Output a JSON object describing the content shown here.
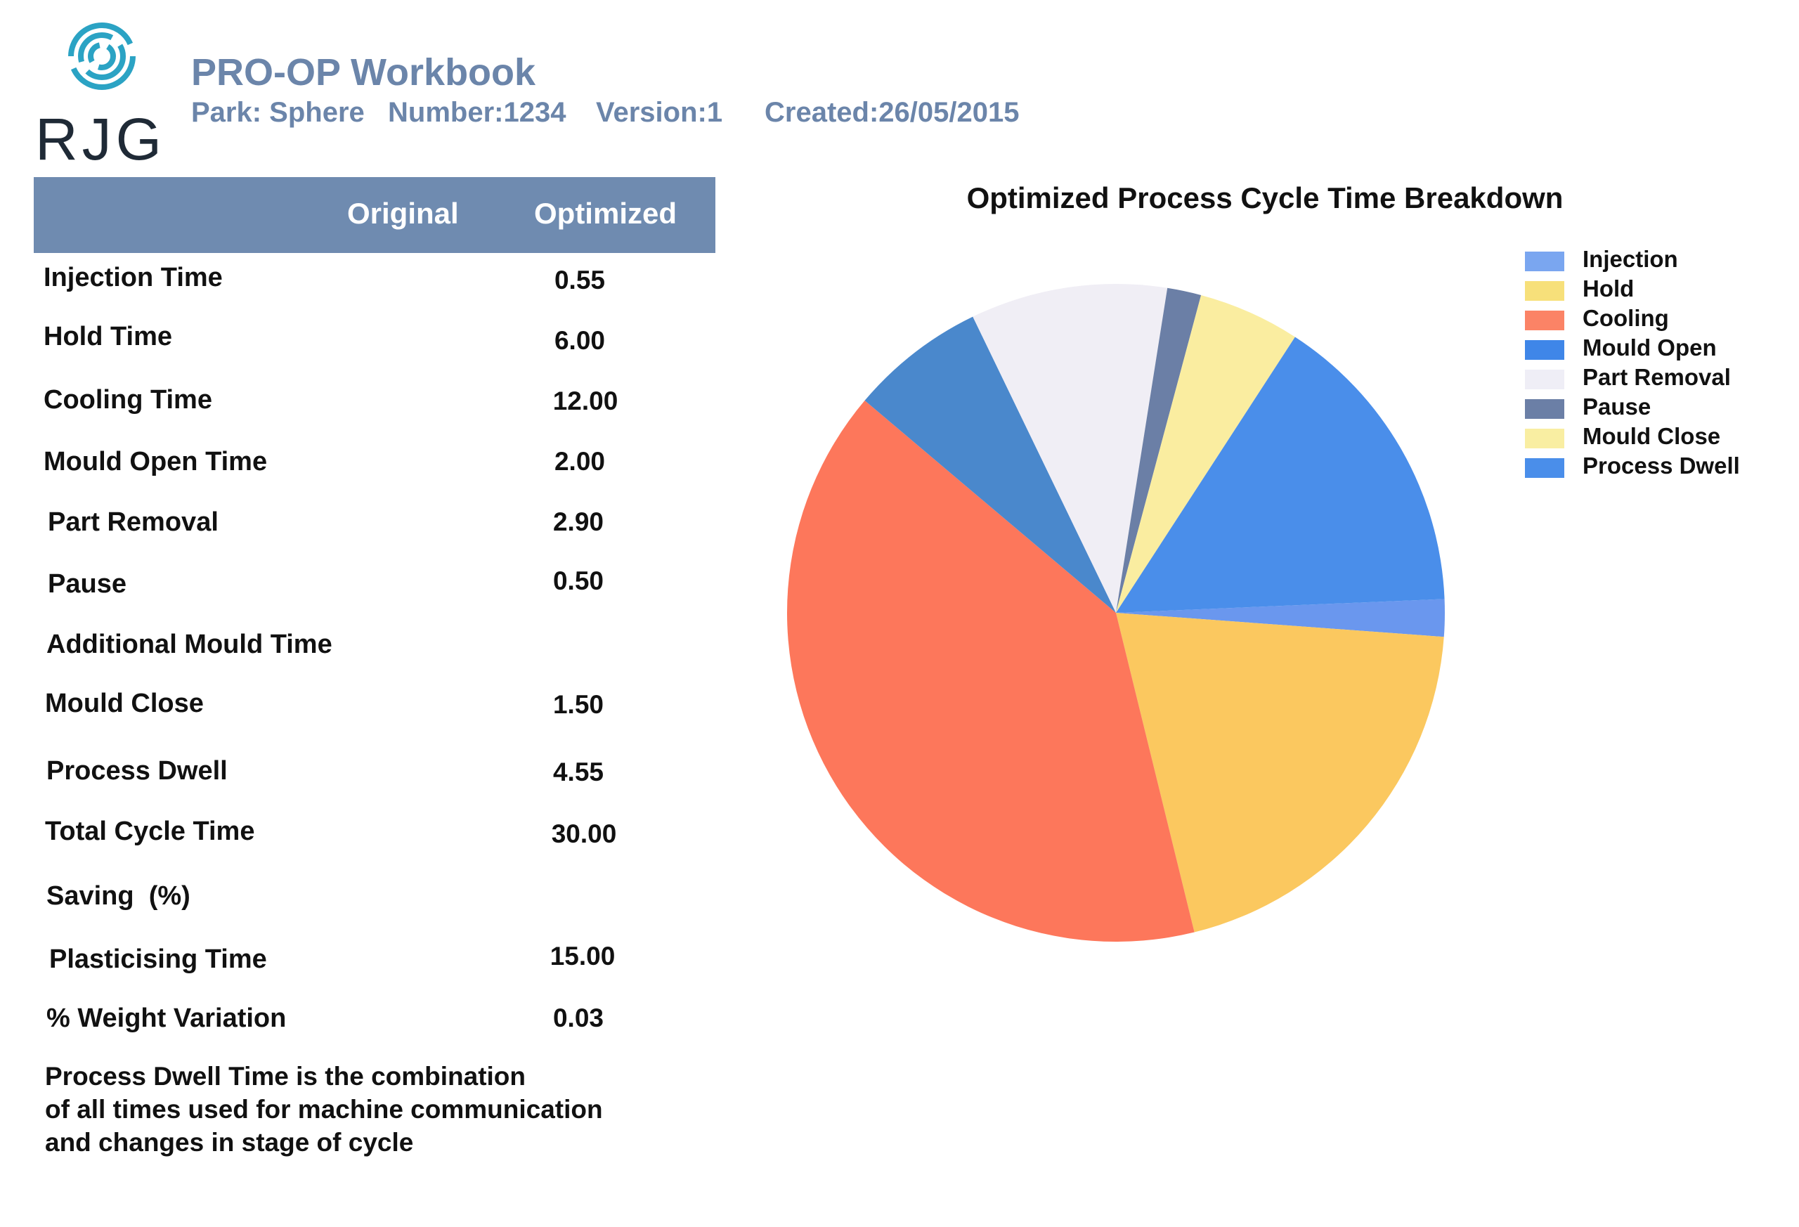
{
  "header": {
    "logo_text": "RJG",
    "title": "PRO-OP Workbook",
    "park": "Park: Sphere",
    "number": "Number:1234",
    "version": "Version:1",
    "created": "Created:26/05/2015"
  },
  "table": {
    "col_original": "Original",
    "col_optimized": "Optimized",
    "rows": [
      {
        "label": "Injection Time",
        "optimized": "0.55"
      },
      {
        "label": "Hold Time",
        "optimized": "6.00"
      },
      {
        "label": "Cooling Time",
        "optimized": "12.00"
      },
      {
        "label": "Mould Open Time",
        "optimized": "2.00"
      },
      {
        "label": "Part Removal",
        "optimized": "2.90"
      },
      {
        "label": "Pause",
        "optimized": "0.50"
      },
      {
        "label": "Additional Mould Time",
        "optimized": ""
      },
      {
        "label": "Mould Close",
        "optimized": "1.50"
      },
      {
        "label": "Process Dwell",
        "optimized": "4.55"
      },
      {
        "label": "Total Cycle Time",
        "optimized": "30.00"
      },
      {
        "label": "Saving  (%)",
        "optimized": ""
      },
      {
        "label": "Plasticising Time",
        "optimized": "15.00"
      },
      {
        "label": "% Weight Variation",
        "optimized": "0.03"
      }
    ]
  },
  "note": {
    "line1": "Process Dwell Time is the combination",
    "line2": "of all times used for machine communication",
    "line3": "and changes in stage of cycle"
  },
  "chart_data": {
    "type": "pie",
    "title": "Optimized Process Cycle Time Breakdown",
    "categories": [
      "Injection",
      "Hold",
      "Cooling",
      "Mould Open",
      "Part Removal",
      "Pause",
      "Mould Close",
      "Process Dwell"
    ],
    "values": [
      0.55,
      6.0,
      12.0,
      2.0,
      2.9,
      0.5,
      1.5,
      4.55
    ],
    "colors": [
      "#6a97ee",
      "#fbc85f",
      "#fd775b",
      "#4a88cc",
      "#f0eef5",
      "#6b7fa6",
      "#faeda0",
      "#4a8eea"
    ],
    "legend_colors": [
      "#7aa6f0",
      "#f7e07a",
      "#fb8366",
      "#3f86e8",
      "#efeef6",
      "#6b7fa6",
      "#f9eea2",
      "#4a8eea"
    ],
    "legend_position": "right"
  }
}
